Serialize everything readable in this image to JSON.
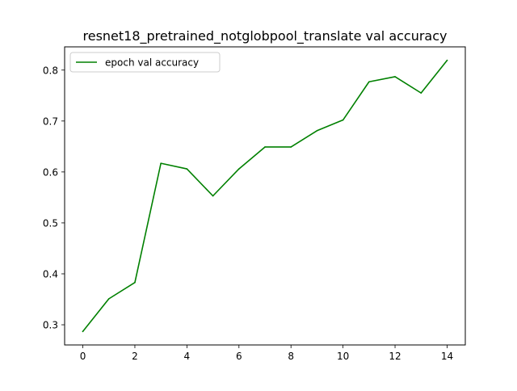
{
  "chart_data": {
    "type": "line",
    "title": "resnet18_pretrained_notglobpool_translate val accuracy",
    "xlabel": "",
    "ylabel": "",
    "x": [
      0,
      1,
      2,
      3,
      4,
      5,
      6,
      7,
      8,
      9,
      10,
      11,
      12,
      13,
      14
    ],
    "series": [
      {
        "name": "epoch val accuracy",
        "color": "#008000",
        "values": [
          0.287,
          0.351,
          0.383,
          0.617,
          0.606,
          0.553,
          0.606,
          0.649,
          0.649,
          0.681,
          0.702,
          0.777,
          0.787,
          0.755,
          0.819
        ]
      }
    ],
    "xlim": [
      -0.7,
      14.7
    ],
    "ylim": [
      0.2604,
      0.8456
    ],
    "xticks": [
      0,
      2,
      4,
      6,
      8,
      10,
      12,
      14
    ],
    "yticks": [
      0.3,
      0.4,
      0.5,
      0.6,
      0.7,
      0.8
    ],
    "xtick_labels": [
      "0",
      "2",
      "4",
      "6",
      "8",
      "10",
      "12",
      "14"
    ],
    "ytick_labels": [
      "0.3",
      "0.4",
      "0.5",
      "0.6",
      "0.7",
      "0.8"
    ],
    "grid": false,
    "legend_position": "upper-left"
  }
}
